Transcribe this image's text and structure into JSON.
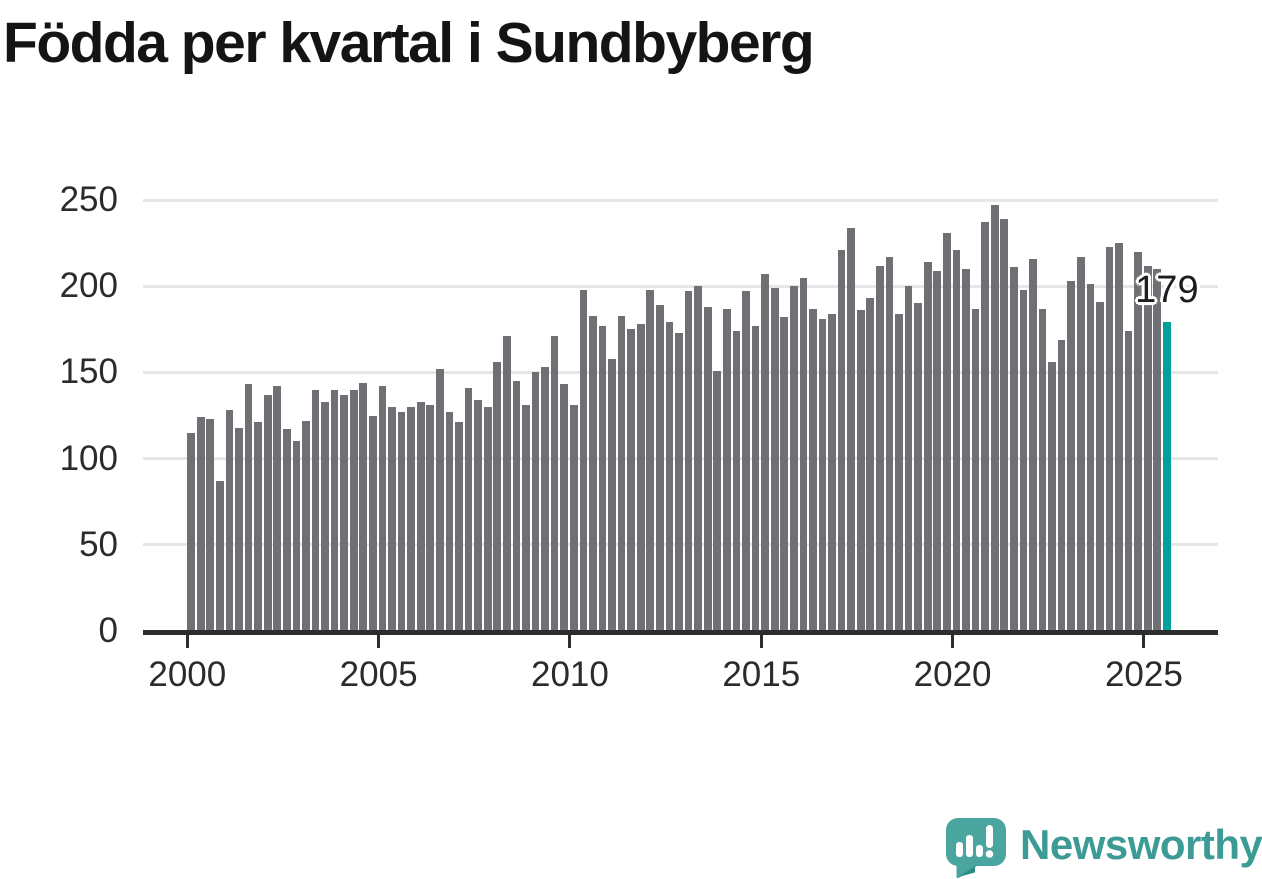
{
  "chart_data": {
    "type": "bar",
    "title": "Födda per kvartal i Sundbyberg",
    "x_tick_labels": [
      "2000",
      "2005",
      "2010",
      "2015",
      "2020",
      "2025"
    ],
    "y_tick_labels": [
      "0",
      "50",
      "100",
      "150",
      "200",
      "250"
    ],
    "ylim": [
      0,
      250
    ],
    "grid": "horizontal",
    "legend_position": "none",
    "start_quarter": "2000 Q1",
    "end_quarter": "2025 Q3",
    "quarters_per_year": 4,
    "series": [
      {
        "name": "Födda per kvartal",
        "values": [
          115,
          124,
          123,
          87,
          128,
          118,
          143,
          121,
          137,
          142,
          117,
          110,
          122,
          140,
          133,
          140,
          137,
          140,
          144,
          125,
          142,
          130,
          127,
          130,
          133,
          131,
          152,
          127,
          121,
          141,
          134,
          130,
          156,
          171,
          145,
          131,
          150,
          153,
          171,
          143,
          131,
          198,
          183,
          177,
          158,
          183,
          175,
          178,
          198,
          189,
          179,
          173,
          197,
          200,
          188,
          151,
          187,
          174,
          197,
          177,
          207,
          199,
          182,
          200,
          205,
          187,
          181,
          184,
          221,
          234,
          186,
          193,
          212,
          217,
          184,
          200,
          190,
          214,
          209,
          231,
          221,
          210,
          187,
          237,
          247,
          239,
          211,
          198,
          216,
          187,
          156,
          169,
          203,
          217,
          201,
          191,
          223,
          225,
          174,
          220,
          212,
          210,
          179
        ]
      }
    ],
    "highlight_last": {
      "value": 179,
      "label": "179"
    },
    "colors": {
      "bar": "#706f74",
      "highlight": "#00a19a",
      "grid": "#e6e6e6",
      "axis": "#2d2d2d",
      "title": "#141414",
      "tick_label": "#2b2b2b",
      "value_label": "#1d1d1d"
    }
  },
  "footer": {
    "brand": "Newsworthy",
    "logo_icon": "newsworthy-speech-bubble-bar-chart-icon",
    "brand_color": "#3c9b95",
    "logo_bubble_color": "#4aa59e",
    "logo_bubble_shadow_color": "#2e8c86",
    "logo_glyph_color": "#ffffff"
  }
}
